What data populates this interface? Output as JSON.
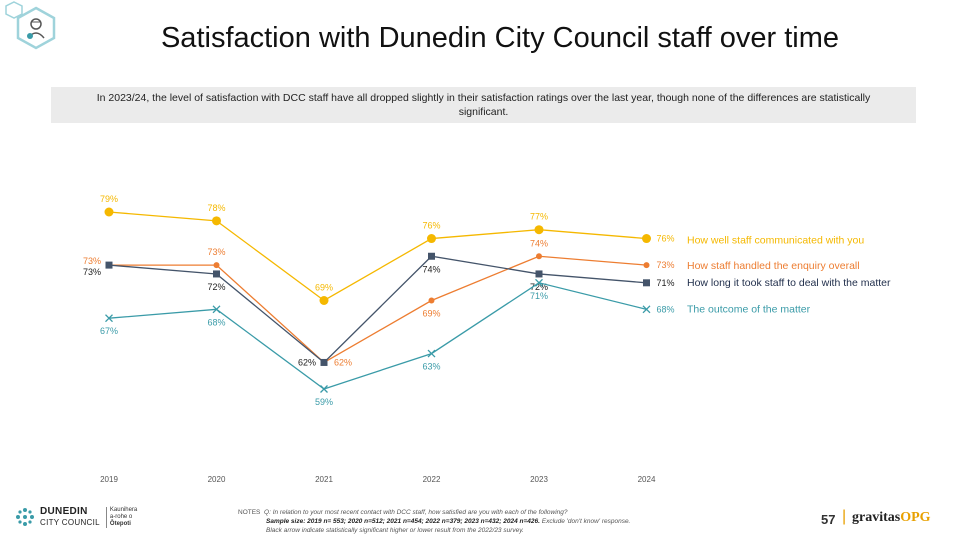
{
  "title": "Satisfaction with Dunedin City Council staff over time",
  "banner": "In 2023/24, the level of satisfaction with DCC staff have all dropped slightly in their satisfaction ratings over the last year, though none of the differences are statistically significant.",
  "footer": {
    "logo_name": "DUNEDIN",
    "logo_name2": "CITY COUNCIL",
    "logo_maori1": "Kaunihera",
    "logo_maori2": "a-rohe o",
    "logo_maori3": "Ōtepoti",
    "notes_label": "NOTES",
    "notes_q": "Q: In relation to your most recent contact with DCC staff, how satisfied are you with each of the following?",
    "notes_sample": "Sample size: 2019 n= 553; 2020 n=512; 2021 n=454; 2022 n=379; 2023 n=432; 2024 n=426.",
    "notes_exclude": " Exclude 'don't know' response.",
    "notes_arrow": "Black arrow indicate statistically significant higher or lower result from the 2022/23 survey.",
    "page_number": "57",
    "separator": "|",
    "brand_a": "gravitas",
    "brand_b": "OPG"
  },
  "chart_data": {
    "type": "line",
    "categories": [
      "2019",
      "2020",
      "2021",
      "2022",
      "2023",
      "2024"
    ],
    "ylim": [
      50,
      85
    ],
    "grid": false,
    "legend": "right, inline labels",
    "series": [
      {
        "name": "How well staff communicated with you",
        "values": [
          79,
          78,
          69,
          76,
          77,
          76
        ],
        "labels": [
          "79%",
          "78%",
          "69%",
          "76%",
          "77%",
          "76%"
        ],
        "color": "#f5b800",
        "marker": "circle-large",
        "label_pos": [
          "above",
          "above",
          "above",
          "above",
          "above",
          "right"
        ]
      },
      {
        "name": "How staff handled the enquiry overall",
        "values": [
          73,
          73,
          62,
          69,
          74,
          73
        ],
        "labels": [
          "73%",
          "73%",
          "62%",
          "69%",
          "74%",
          "73%"
        ],
        "color": "#ed7d31",
        "marker": "circle-small",
        "label_pos": [
          "left-up",
          "above",
          "right",
          "below",
          "above",
          "right"
        ]
      },
      {
        "name": "How long it took staff to deal with the matter",
        "values": [
          73,
          72,
          62,
          74,
          72,
          71
        ],
        "labels": [
          "73%",
          "72%",
          "62%",
          "74%",
          "72%",
          "71%"
        ],
        "color": "#44546a",
        "marker": "square",
        "label_pos": [
          "left-down",
          "below",
          "left",
          "below",
          "below",
          "right"
        ]
      },
      {
        "name": "The outcome of the matter",
        "values": [
          67,
          68,
          59,
          63,
          71,
          68
        ],
        "labels": [
          "67%",
          "68%",
          "59%",
          "63%",
          "71%",
          "68%"
        ],
        "color": "#3a9ba8",
        "marker": "x",
        "label_pos": [
          "below",
          "below",
          "below",
          "below",
          "below",
          "right"
        ]
      }
    ]
  }
}
